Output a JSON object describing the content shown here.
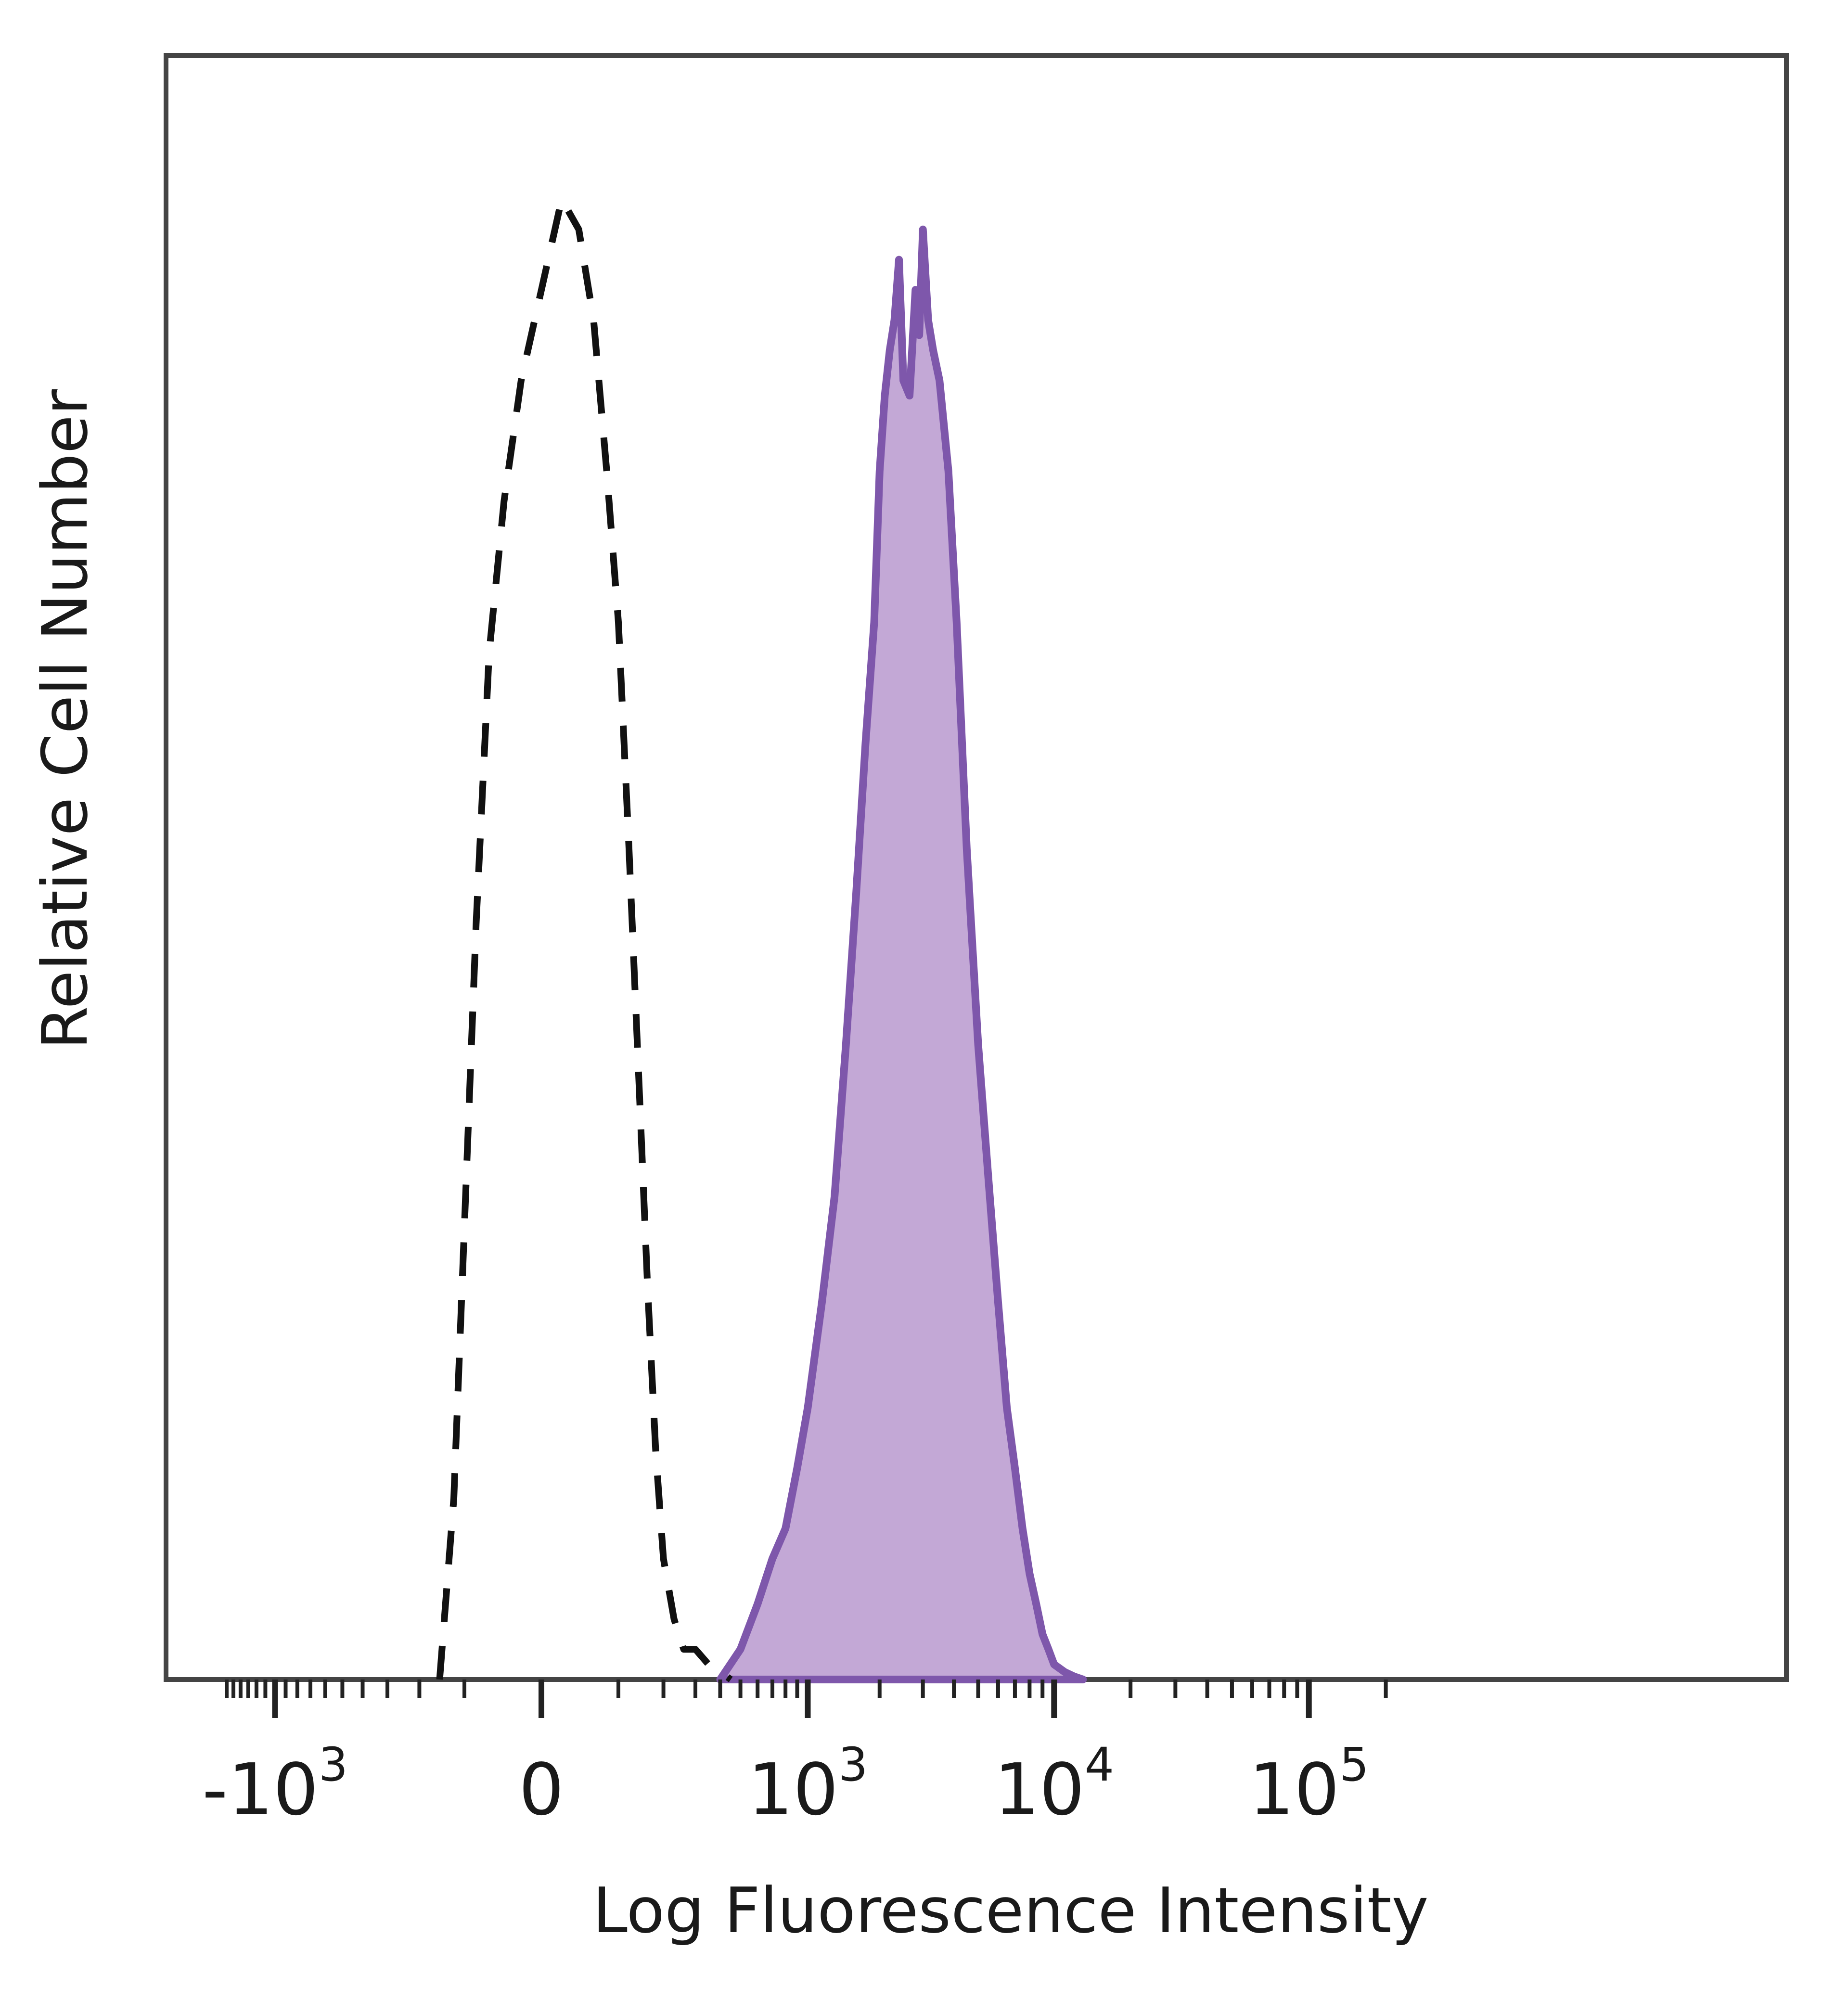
{
  "chart_data": {
    "type": "area",
    "title": "",
    "xlabel": "Log Fluorescence Intensity",
    "ylabel": "Relative Cell Number",
    "x_scale": "biexponential",
    "xlim": [
      -1800,
      250000
    ],
    "ylim": [
      0,
      100
    ],
    "grid": false,
    "legend": "none",
    "x_ticks": [
      {
        "value": -1000,
        "base": "-10",
        "exp": "3"
      },
      {
        "value": 0,
        "base": "0",
        "exp": ""
      },
      {
        "value": 1000,
        "base": "10",
        "exp": "3"
      },
      {
        "value": 10000,
        "base": "10",
        "exp": "4"
      },
      {
        "value": 100000,
        "base": "10",
        "exp": "5"
      }
    ],
    "series": [
      {
        "style": "filled",
        "color": "#7e57ab",
        "fill": "#c3a8d6",
        "x": [
          400,
          500,
          600,
          700,
          800,
          900,
          1000,
          1150,
          1300,
          1450,
          1600,
          1750,
          1900,
          2000,
          2100,
          2200,
          2300,
          2400,
          2500,
          2650,
          2800,
          2900,
          3000,
          3150,
          3300,
          3500,
          3800,
          4100,
          4500,
          5000,
          5500,
          6000,
          6500,
          7000,
          7500,
          8000,
          8500,
          9000,
          9500,
          10000,
          11000,
          12000,
          13000
        ],
        "y": [
          0,
          2,
          5,
          8,
          10,
          14,
          18,
          25,
          32,
          42,
          52,
          62,
          70,
          80,
          85,
          88,
          90,
          94,
          86,
          85,
          92,
          89,
          96,
          90,
          88,
          86,
          80,
          70,
          55,
          42,
          33,
          25,
          18,
          14,
          10,
          7,
          5,
          3,
          2,
          1,
          0.5,
          0.2,
          0
        ]
      },
      {
        "style": "dashed",
        "color": "#111111",
        "x": [
          -150,
          -120,
          -100,
          -80,
          -60,
          -40,
          -20,
          0,
          20,
          40,
          60,
          80,
          100,
          120,
          140,
          160,
          180,
          200,
          230,
          260,
          300,
          350,
          400,
          450
        ],
        "y": [
          0,
          12,
          30,
          50,
          68,
          78,
          86,
          92,
          98,
          96,
          90,
          80,
          70,
          55,
          40,
          26,
          15,
          8,
          4,
          2,
          2,
          1,
          0.5,
          0
        ]
      }
    ]
  }
}
